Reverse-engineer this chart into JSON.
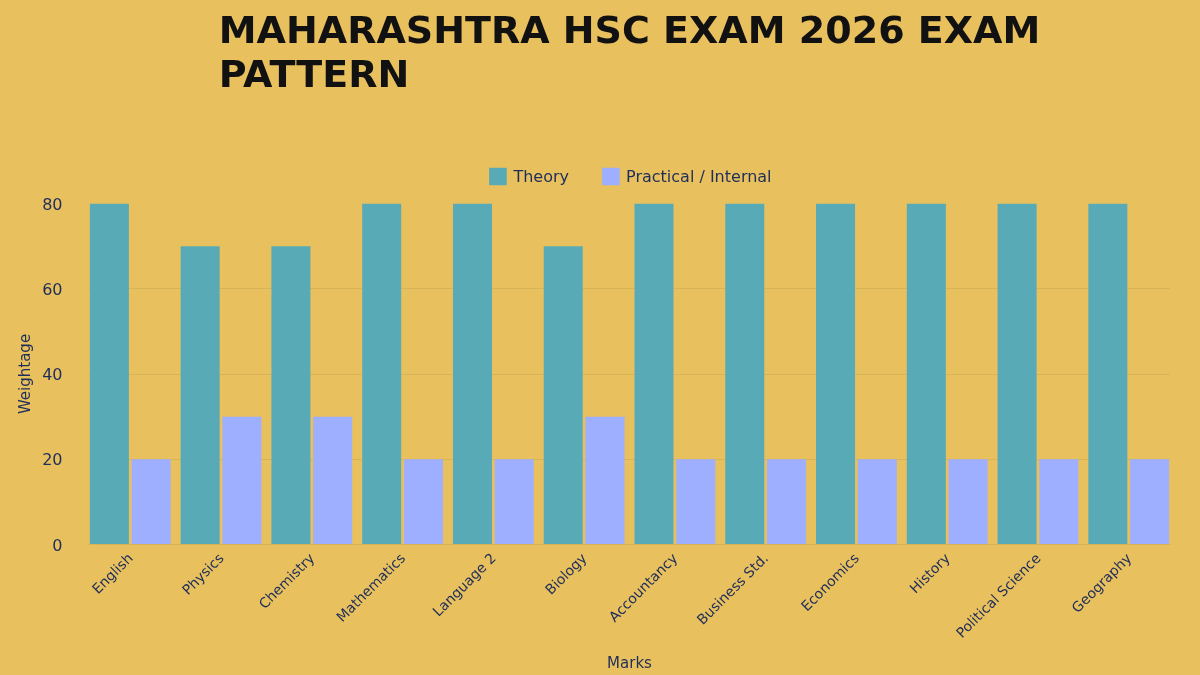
{
  "chart_data": {
    "type": "bar",
    "title": "MAHARASHTRA HSC EXAM 2026 EXAM PATTERN",
    "xlabel": "Marks",
    "ylabel": "Weightage",
    "categories": [
      "English",
      "Physics",
      "Chemistry",
      "Mathematics",
      "Language 2",
      "Biology",
      "Accountancy",
      "Business Std.",
      "Economics",
      "History",
      "Political Science",
      "Geography"
    ],
    "series": [
      {
        "name": "Theory",
        "color": "#58abb6",
        "values": [
          80,
          70,
          70,
          80,
          80,
          70,
          80,
          80,
          80,
          80,
          80,
          80
        ]
      },
      {
        "name": "Practical / Internal",
        "color": "#9daffe",
        "values": [
          20,
          30,
          30,
          20,
          20,
          30,
          20,
          20,
          20,
          20,
          20,
          20
        ]
      }
    ],
    "ylim": [
      0,
      80
    ],
    "yticks": [
      0,
      20,
      40,
      60,
      80
    ],
    "grid": "y",
    "legend": "top"
  }
}
